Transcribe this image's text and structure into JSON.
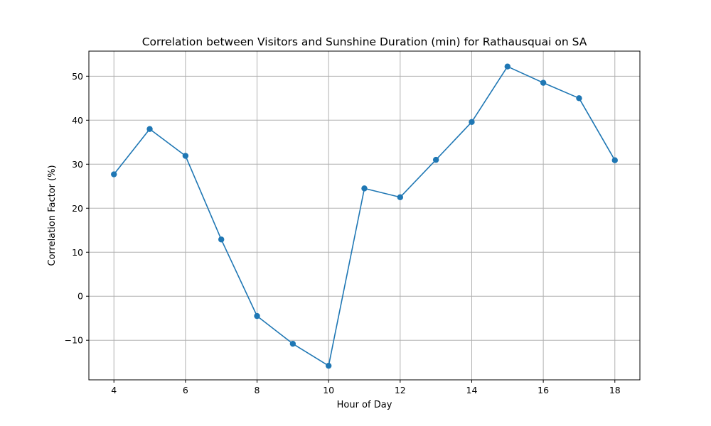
{
  "chart_data": {
    "type": "line",
    "title": "Correlation between Visitors and Sunshine Duration (min) for Rathausquai on SA",
    "xlabel": "Hour of Day",
    "ylabel": "Correlation Factor (%)",
    "xlim": [
      3.3,
      18.7
    ],
    "ylim": [
      -19,
      55.7
    ],
    "xticks": [
      4,
      6,
      8,
      10,
      12,
      14,
      16,
      18
    ],
    "yticks": [
      -10,
      0,
      10,
      20,
      30,
      40,
      50
    ],
    "ytick_labels": [
      "−10",
      "0",
      "10",
      "20",
      "30",
      "40",
      "50"
    ],
    "grid": true,
    "color": "#1f77b4",
    "series": [
      {
        "x": [
          4,
          5,
          6,
          7,
          8,
          9,
          10,
          11,
          12,
          13,
          14,
          15,
          16,
          17,
          18
        ],
        "y": [
          27.7,
          38.0,
          31.9,
          12.9,
          -4.5,
          -10.8,
          -15.8,
          24.5,
          22.5,
          31.0,
          39.6,
          52.2,
          48.5,
          45.0,
          30.9
        ]
      }
    ]
  }
}
